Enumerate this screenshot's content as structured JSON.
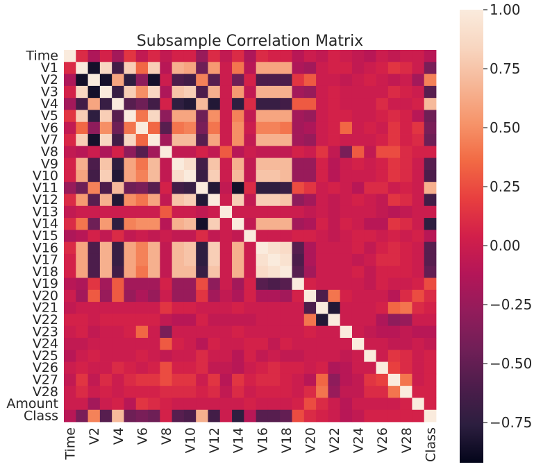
{
  "chart_data": {
    "type": "heatmap",
    "title": "Subsample Correlation Matrix",
    "variables": [
      "Time",
      "V1",
      "V2",
      "V3",
      "V4",
      "V5",
      "V6",
      "V7",
      "V8",
      "V9",
      "V10",
      "V11",
      "V12",
      "V13",
      "V14",
      "V15",
      "V16",
      "V17",
      "V18",
      "V19",
      "V20",
      "V21",
      "V22",
      "V23",
      "V24",
      "V25",
      "V26",
      "V27",
      "V28",
      "Amount",
      "Class"
    ],
    "x_tick_labels": [
      "Time",
      "V2",
      "V4",
      "V6",
      "V8",
      "V10",
      "V12",
      "V14",
      "V16",
      "V18",
      "V20",
      "V22",
      "V24",
      "V26",
      "V28",
      "Class"
    ],
    "colorbar": {
      "range": [
        -0.92,
        1.0
      ],
      "ticks": [
        1.0,
        0.75,
        0.5,
        0.25,
        0.0,
        -0.25,
        -0.5,
        -0.75
      ],
      "tick_labels": [
        "1.00",
        "0.75",
        "0.50",
        "0.25",
        "0.00",
        "−0.25",
        "−0.50",
        "−0.75"
      ]
    },
    "colormap": [
      "#03051a",
      "#2c1e3f",
      "#4c1d4b",
      "#701f57",
      "#921c5b",
      "#b41658",
      "#d21f4a",
      "#e83f3f",
      "#f26a44",
      "#f6946a",
      "#f6b696",
      "#f8d6c0",
      "#faebdd"
    ],
    "matrix": [
      [
        1.0,
        0.1,
        -0.15,
        0.05,
        -0.2,
        0.15,
        -0.05,
        0.08,
        -0.05,
        0.05,
        0.05,
        -0.25,
        0.1,
        -0.05,
        0.1,
        -0.15,
        0.1,
        0.05,
        0.05,
        -0.1,
        0.0,
        -0.05,
        0.05,
        0.0,
        -0.05,
        -0.1,
        0.0,
        -0.05,
        0.0,
        0.0,
        -0.1
      ],
      [
        0.1,
        1.0,
        -0.85,
        0.85,
        -0.65,
        0.8,
        0.35,
        0.8,
        -0.1,
        0.65,
        0.6,
        -0.45,
        0.55,
        0.0,
        0.4,
        -0.1,
        0.6,
        0.6,
        0.6,
        -0.15,
        -0.2,
        0.0,
        0.05,
        0.05,
        -0.05,
        0.0,
        0.05,
        0.15,
        0.1,
        0.0,
        -0.4
      ],
      [
        -0.15,
        -0.85,
        1.0,
        -0.85,
        0.6,
        -0.75,
        -0.3,
        -0.85,
        0.0,
        -0.6,
        -0.65,
        0.45,
        -0.55,
        0.0,
        -0.45,
        0.05,
        -0.6,
        -0.6,
        -0.6,
        0.15,
        0.3,
        0.0,
        0.0,
        -0.05,
        0.0,
        0.05,
        0.0,
        -0.05,
        0.0,
        -0.2,
        0.45
      ],
      [
        0.05,
        0.85,
        -0.85,
        1.0,
        -0.7,
        0.8,
        0.5,
        0.85,
        -0.15,
        0.75,
        0.8,
        -0.6,
        0.65,
        0.0,
        0.55,
        -0.05,
        0.65,
        0.65,
        0.65,
        -0.2,
        -0.25,
        0.0,
        0.05,
        0.0,
        0.0,
        0.0,
        0.0,
        0.1,
        0.05,
        0.0,
        -0.55
      ],
      [
        -0.2,
        -0.65,
        0.6,
        -0.7,
        1.0,
        -0.55,
        -0.45,
        -0.65,
        0.05,
        -0.75,
        -0.8,
        0.7,
        -0.8,
        0.0,
        -0.75,
        0.1,
        -0.7,
        -0.7,
        -0.65,
        0.3,
        0.3,
        0.0,
        0.05,
        0.0,
        0.0,
        0.0,
        0.1,
        0.0,
        0.0,
        0.05,
        0.7
      ],
      [
        0.15,
        0.8,
        -0.75,
        0.8,
        -0.55,
        1.0,
        0.4,
        0.85,
        -0.3,
        0.6,
        0.6,
        -0.45,
        0.5,
        0.0,
        0.45,
        -0.05,
        0.6,
        0.6,
        0.6,
        -0.2,
        -0.25,
        0.0,
        0.05,
        0.05,
        0.0,
        0.0,
        0.05,
        0.1,
        0.05,
        -0.1,
        -0.45
      ],
      [
        -0.05,
        0.35,
        -0.3,
        0.5,
        -0.45,
        0.4,
        1.0,
        0.35,
        -0.55,
        0.4,
        0.45,
        -0.4,
        0.4,
        0.0,
        0.5,
        0.0,
        0.45,
        0.45,
        0.4,
        -0.2,
        -0.15,
        0.0,
        0.05,
        0.35,
        0.0,
        0.05,
        0.0,
        0.15,
        0.05,
        0.15,
        -0.4
      ],
      [
        0.08,
        0.8,
        -0.85,
        0.85,
        -0.65,
        0.85,
        0.35,
        1.0,
        -0.2,
        0.7,
        0.7,
        -0.55,
        0.6,
        0.0,
        0.5,
        -0.05,
        0.65,
        0.65,
        0.65,
        -0.2,
        -0.25,
        0.0,
        0.05,
        0.0,
        0.0,
        0.0,
        0.05,
        0.15,
        0.05,
        0.1,
        -0.45
      ],
      [
        -0.05,
        -0.1,
        0.0,
        -0.15,
        0.05,
        -0.3,
        -0.55,
        -0.2,
        1.0,
        -0.05,
        -0.05,
        0.05,
        -0.05,
        0.3,
        -0.1,
        0.0,
        -0.05,
        -0.05,
        -0.05,
        0.05,
        0.0,
        0.15,
        -0.05,
        -0.4,
        0.3,
        -0.05,
        0.25,
        0.25,
        0.1,
        0.05,
        0.05
      ],
      [
        0.05,
        0.65,
        -0.6,
        0.75,
        -0.75,
        0.6,
        0.4,
        0.7,
        -0.05,
        1.0,
        0.9,
        -0.65,
        0.75,
        0.0,
        0.65,
        -0.05,
        0.7,
        0.7,
        0.7,
        -0.25,
        -0.25,
        0.05,
        -0.1,
        0.0,
        0.05,
        0.0,
        0.05,
        0.15,
        0.1,
        0.0,
        -0.55
      ],
      [
        0.05,
        0.6,
        -0.65,
        0.8,
        -0.8,
        0.6,
        0.45,
        0.7,
        -0.05,
        0.9,
        1.0,
        -0.7,
        0.8,
        0.0,
        0.7,
        -0.05,
        0.75,
        0.75,
        0.7,
        -0.25,
        -0.25,
        0.05,
        -0.1,
        0.0,
        0.0,
        0.0,
        0.05,
        0.15,
        0.1,
        0.0,
        -0.6
      ],
      [
        -0.25,
        -0.45,
        0.45,
        -0.6,
        0.7,
        -0.45,
        -0.4,
        -0.55,
        0.05,
        -0.65,
        -0.7,
        1.0,
        -0.8,
        -0.05,
        -0.85,
        0.1,
        -0.75,
        -0.75,
        -0.7,
        0.25,
        0.15,
        0.0,
        0.05,
        0.0,
        -0.1,
        0.1,
        0.1,
        0.0,
        0.05,
        0.0,
        0.65
      ],
      [
        0.1,
        0.55,
        -0.55,
        0.65,
        -0.8,
        0.5,
        0.4,
        0.6,
        -0.05,
        0.75,
        0.8,
        -0.8,
        1.0,
        0.0,
        0.8,
        -0.05,
        0.8,
        0.8,
        0.75,
        -0.3,
        -0.2,
        0.0,
        -0.05,
        0.0,
        0.05,
        0.0,
        -0.05,
        0.15,
        0.1,
        0.0,
        -0.65
      ],
      [
        -0.05,
        0.0,
        0.0,
        0.0,
        0.0,
        0.0,
        0.0,
        0.0,
        0.3,
        0.0,
        0.0,
        -0.05,
        0.0,
        1.0,
        0.0,
        0.0,
        0.0,
        0.0,
        0.0,
        0.0,
        -0.05,
        0.0,
        -0.05,
        0.0,
        0.0,
        0.0,
        -0.05,
        -0.1,
        -0.05,
        0.0,
        0.0
      ],
      [
        0.1,
        0.4,
        -0.45,
        0.55,
        -0.75,
        0.45,
        0.5,
        0.5,
        -0.1,
        0.65,
        0.7,
        -0.85,
        0.8,
        0.0,
        1.0,
        -0.05,
        0.65,
        0.65,
        0.65,
        -0.2,
        -0.15,
        0.05,
        -0.05,
        0.05,
        0.0,
        -0.1,
        -0.1,
        0.15,
        0.1,
        0.0,
        -0.75
      ],
      [
        -0.15,
        -0.1,
        0.05,
        -0.05,
        0.1,
        -0.05,
        0.0,
        -0.05,
        0.0,
        -0.05,
        -0.05,
        0.1,
        -0.05,
        0.0,
        -0.05,
        1.0,
        0.0,
        0.0,
        0.0,
        0.05,
        0.05,
        0.0,
        -0.05,
        0.0,
        0.05,
        0.05,
        0.0,
        0.05,
        0.0,
        0.05,
        -0.1
      ],
      [
        0.1,
        0.6,
        -0.6,
        0.65,
        -0.7,
        0.6,
        0.45,
        0.65,
        -0.05,
        0.7,
        0.75,
        -0.75,
        0.8,
        0.0,
        0.65,
        0.0,
        1.0,
        0.92,
        0.88,
        -0.55,
        -0.15,
        0.0,
        0.0,
        0.0,
        0.05,
        -0.05,
        0.05,
        0.1,
        0.05,
        0.0,
        -0.55
      ],
      [
        0.05,
        0.6,
        -0.6,
        0.65,
        -0.7,
        0.6,
        0.45,
        0.65,
        -0.05,
        0.7,
        0.75,
        -0.75,
        0.8,
        0.0,
        0.65,
        0.0,
        0.92,
        1.0,
        0.93,
        -0.6,
        -0.15,
        0.0,
        0.0,
        0.0,
        -0.05,
        0.0,
        0.1,
        0.1,
        0.05,
        0.0,
        -0.55
      ],
      [
        0.05,
        0.6,
        -0.6,
        0.65,
        -0.65,
        0.6,
        0.4,
        0.65,
        -0.05,
        0.7,
        0.7,
        -0.7,
        0.75,
        0.0,
        0.65,
        0.0,
        0.88,
        0.93,
        1.0,
        -0.55,
        -0.2,
        0.0,
        0.0,
        0.0,
        0.05,
        -0.05,
        0.05,
        0.05,
        0.05,
        0.0,
        -0.5
      ],
      [
        -0.1,
        -0.15,
        0.15,
        -0.2,
        0.3,
        -0.2,
        -0.2,
        -0.2,
        0.05,
        -0.25,
        -0.25,
        0.25,
        -0.3,
        0.0,
        -0.2,
        0.05,
        -0.55,
        -0.6,
        -0.55,
        1.0,
        0.05,
        0.0,
        0.0,
        0.0,
        0.0,
        -0.05,
        0.05,
        0.0,
        0.0,
        0.05,
        0.25
      ],
      [
        0.0,
        -0.2,
        0.3,
        -0.25,
        0.3,
        -0.25,
        -0.15,
        -0.25,
        0.0,
        -0.25,
        -0.25,
        0.15,
        -0.2,
        -0.05,
        -0.15,
        0.05,
        -0.15,
        -0.15,
        -0.2,
        0.05,
        1.0,
        -0.6,
        0.4,
        0.05,
        0.0,
        0.0,
        0.0,
        -0.1,
        0.1,
        0.25,
        0.1
      ],
      [
        -0.05,
        0.0,
        0.0,
        0.0,
        0.0,
        0.0,
        0.0,
        0.0,
        0.15,
        0.05,
        0.05,
        0.0,
        0.0,
        0.0,
        0.05,
        0.0,
        0.0,
        0.0,
        0.0,
        0.0,
        -0.6,
        1.0,
        -0.8,
        0.0,
        0.0,
        0.0,
        0.05,
        0.35,
        0.4,
        0.1,
        0.05
      ],
      [
        0.05,
        0.05,
        0.0,
        0.05,
        0.05,
        0.05,
        0.05,
        0.05,
        -0.05,
        -0.1,
        -0.1,
        0.05,
        -0.05,
        -0.05,
        -0.05,
        -0.05,
        0.0,
        0.0,
        0.0,
        0.0,
        0.4,
        -0.8,
        1.0,
        0.0,
        0.0,
        0.0,
        -0.15,
        -0.3,
        -0.25,
        0.0,
        0.0
      ],
      [
        0.0,
        0.05,
        -0.05,
        0.0,
        0.0,
        0.05,
        0.35,
        0.0,
        -0.4,
        0.0,
        0.0,
        0.0,
        0.0,
        0.0,
        0.05,
        0.0,
        0.0,
        0.0,
        0.0,
        0.0,
        0.05,
        0.0,
        0.0,
        1.0,
        0.0,
        -0.05,
        -0.1,
        -0.1,
        -0.05,
        -0.1,
        -0.1
      ],
      [
        -0.05,
        -0.05,
        0.0,
        0.0,
        0.0,
        0.0,
        0.0,
        0.0,
        0.3,
        0.05,
        0.0,
        -0.1,
        0.05,
        0.0,
        0.0,
        0.05,
        0.05,
        -0.05,
        0.05,
        0.0,
        0.0,
        0.0,
        0.0,
        0.0,
        1.0,
        0.0,
        0.0,
        -0.05,
        -0.05,
        0.0,
        -0.05
      ],
      [
        -0.1,
        0.0,
        0.05,
        0.0,
        0.0,
        0.0,
        0.05,
        0.0,
        -0.05,
        0.0,
        0.0,
        0.1,
        0.0,
        0.0,
        -0.1,
        0.05,
        -0.05,
        0.0,
        -0.05,
        -0.05,
        0.0,
        0.0,
        0.0,
        -0.05,
        0.0,
        1.0,
        0.0,
        0.15,
        0.1,
        0.0,
        0.05
      ],
      [
        0.0,
        0.05,
        0.0,
        0.0,
        0.1,
        0.05,
        0.0,
        0.05,
        0.25,
        0.05,
        0.05,
        0.1,
        -0.05,
        -0.05,
        -0.1,
        0.0,
        0.05,
        0.1,
        0.05,
        0.05,
        0.0,
        0.05,
        -0.15,
        -0.1,
        0.0,
        0.0,
        1.0,
        0.2,
        0.1,
        0.0,
        0.05
      ],
      [
        -0.05,
        0.15,
        -0.05,
        0.1,
        0.0,
        0.1,
        0.15,
        0.15,
        0.25,
        0.15,
        0.15,
        0.0,
        0.15,
        -0.1,
        0.15,
        0.05,
        0.1,
        0.1,
        0.05,
        0.0,
        -0.1,
        0.35,
        -0.3,
        -0.1,
        -0.05,
        0.15,
        0.2,
        1.0,
        0.4,
        0.0,
        0.05
      ],
      [
        0.0,
        0.1,
        0.0,
        0.05,
        0.0,
        0.05,
        0.05,
        0.05,
        0.1,
        0.1,
        0.1,
        0.05,
        0.1,
        -0.05,
        0.1,
        0.0,
        0.05,
        0.05,
        0.05,
        0.0,
        0.1,
        0.4,
        -0.25,
        -0.05,
        -0.05,
        0.1,
        0.1,
        0.4,
        1.0,
        0.05,
        0.05
      ],
      [
        0.0,
        0.0,
        -0.2,
        0.0,
        0.05,
        -0.1,
        0.15,
        0.1,
        0.05,
        0.0,
        0.0,
        0.0,
        0.0,
        0.0,
        0.0,
        0.05,
        0.0,
        0.0,
        0.0,
        0.05,
        0.25,
        0.1,
        0.0,
        -0.1,
        0.0,
        0.0,
        0.0,
        0.0,
        0.05,
        1.0,
        0.05
      ],
      [
        -0.1,
        -0.4,
        0.45,
        -0.55,
        0.7,
        -0.45,
        -0.4,
        -0.45,
        0.05,
        -0.55,
        -0.6,
        0.65,
        -0.65,
        0.0,
        -0.75,
        -0.1,
        -0.55,
        -0.55,
        -0.5,
        0.25,
        0.1,
        0.05,
        0.0,
        -0.1,
        -0.05,
        0.05,
        0.05,
        0.05,
        0.05,
        0.05,
        1.0
      ]
    ]
  }
}
